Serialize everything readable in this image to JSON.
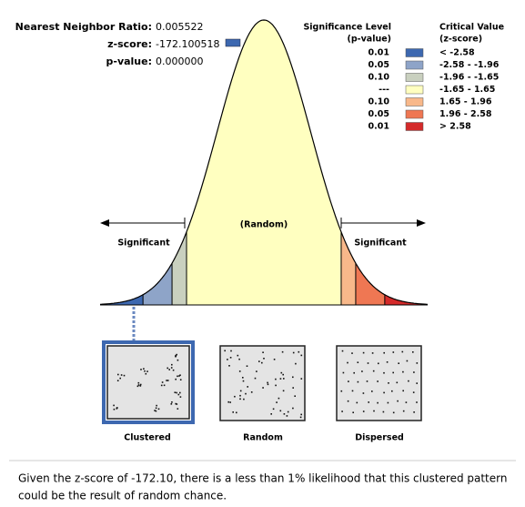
{
  "stats": [
    {
      "label": "Nearest Neighbor Ratio:",
      "value": "0.005522"
    },
    {
      "label": "z-score:",
      "value": "-172.100518"
    },
    {
      "label": "p-value:",
      "value": "0.000000"
    }
  ],
  "legend": {
    "p_header": [
      "Significance Level",
      "(p-value)"
    ],
    "z_header": [
      "Critical Value",
      "(z-score)"
    ],
    "rows": [
      {
        "p": "0.01",
        "z": "< -2.58",
        "color": "#3d68b0"
      },
      {
        "p": "0.05",
        "z": "-2.58 - -1.96",
        "color": "#8ea4c8"
      },
      {
        "p": "0.10",
        "z": "-1.96 - -1.65",
        "color": "#c9d0bf"
      },
      {
        "p": "---",
        "z": "-1.65 - 1.65",
        "color": "#ffffc0"
      },
      {
        "p": "0.10",
        "z": "1.65 - 1.96",
        "color": "#f8b88a"
      },
      {
        "p": "0.05",
        "z": "1.96 - 2.58",
        "color": "#ef7753"
      },
      {
        "p": "0.01",
        "z": "> 2.58",
        "color": "#d42a2a"
      }
    ]
  },
  "curve": {
    "center": "(Random)",
    "left": "Significant",
    "right": "Significant"
  },
  "patterns": [
    "Clustered",
    "Random",
    "Dispersed"
  ],
  "caption": [
    "Given the z-score of -172.10, there is a less than 1% likelihood that this clustered pattern",
    "could be the result of random chance."
  ]
}
